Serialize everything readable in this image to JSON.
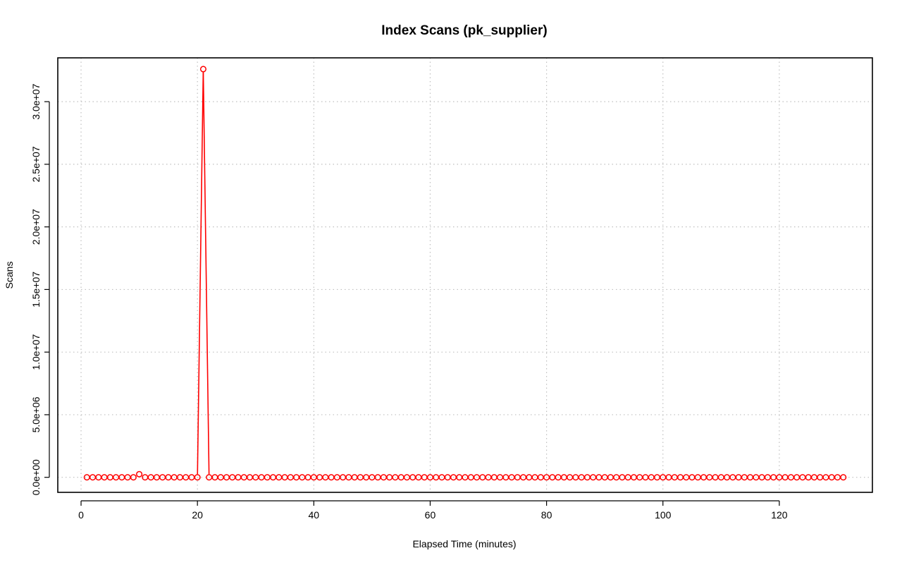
{
  "chart_data": {
    "type": "line",
    "title": "Index Scans (pk_supplier)",
    "xlabel": "Elapsed Time (minutes)",
    "ylabel": "Scans",
    "xlim": [
      -4,
      136
    ],
    "ylim": [
      -1200000,
      33500000
    ],
    "xticks": [
      0,
      20,
      40,
      60,
      80,
      100,
      120
    ],
    "xtick_labels": [
      "0",
      "20",
      "40",
      "60",
      "80",
      "100",
      "120"
    ],
    "yticks": [
      0,
      5000000,
      10000000,
      15000000,
      20000000,
      25000000,
      30000000
    ],
    "ytick_labels": [
      "0.0e+00",
      "5.0e+06",
      "1.0e+07",
      "1.5e+07",
      "2.0e+07",
      "2.5e+07",
      "3.0e+07"
    ],
    "grid": true,
    "markers": "open-circle",
    "color": "#ff0000",
    "series": [
      {
        "x_start": 1,
        "x_end": 131,
        "default_value": 0,
        "overrides": {
          "10": 250000,
          "21": 32600000
        },
        "gaps": [
          20,
          22
        ]
      }
    ]
  }
}
